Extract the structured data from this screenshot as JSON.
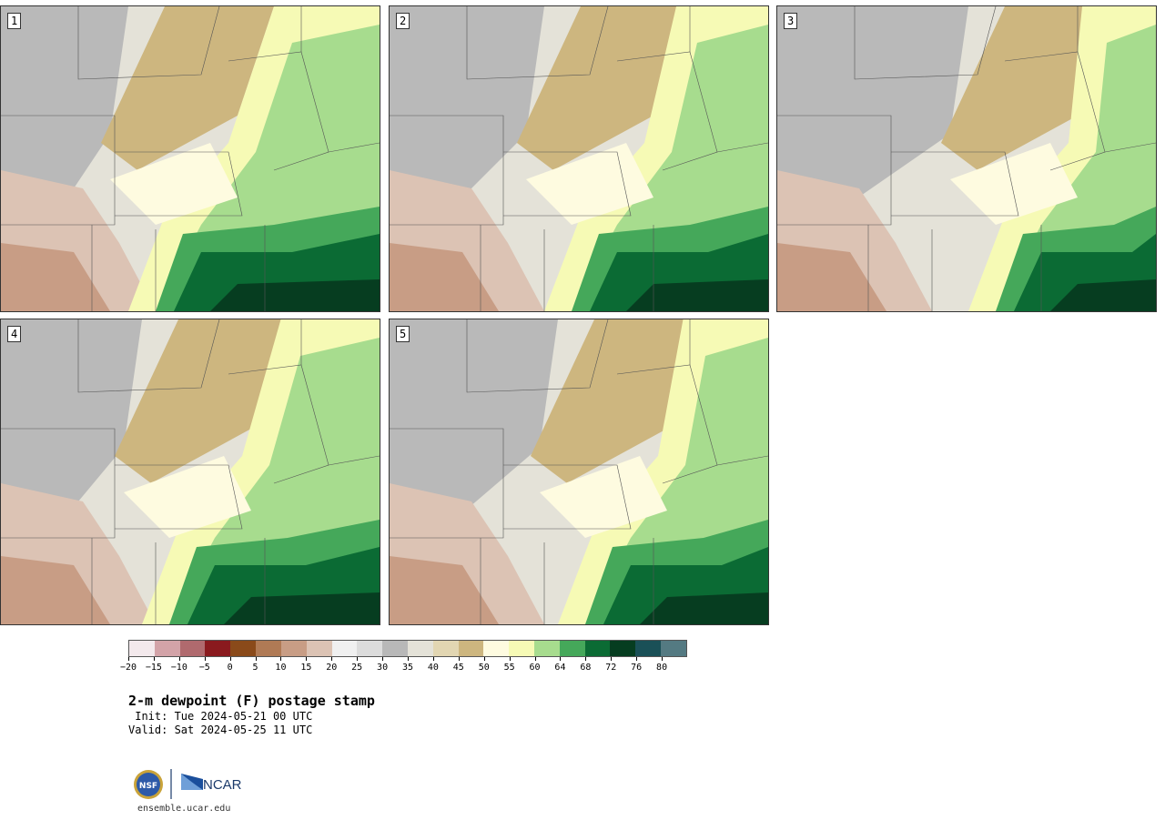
{
  "panels": [
    {
      "label": "1"
    },
    {
      "label": "2"
    },
    {
      "label": "3"
    },
    {
      "label": "4"
    },
    {
      "label": "5"
    }
  ],
  "colorbar": {
    "colors": [
      "#f3e9ec",
      "#d3a3a8",
      "#b06a6e",
      "#8a1a1e",
      "#8a4a1a",
      "#b07a55",
      "#c89d85",
      "#dcc3b4",
      "#f0f0f0",
      "#dcdcdc",
      "#b8b8b8",
      "#e4e2d8",
      "#e2d6b2",
      "#cdb67f",
      "#fefbe0",
      "#f6fab5",
      "#a7dc8e",
      "#45a85a",
      "#0b6b34",
      "#063d20",
      "#1a5057",
      "#547a82"
    ],
    "tick_labels": [
      "−20",
      "−15",
      "−10",
      "−5",
      "0",
      "5",
      "10",
      "15",
      "20",
      "25",
      "30",
      "35",
      "40",
      "45",
      "50",
      "55",
      "60",
      "64",
      "68",
      "72",
      "76",
      "80"
    ]
  },
  "title": "2-m dewpoint (F) postage stamp",
  "init": " Init: Tue 2024-05-21 00 UTC",
  "valid": "Valid: Sat 2024-05-25 11 UTC",
  "logo": {
    "left_text": "NSF",
    "right_text": "NCAR"
  },
  "url": "ensemble.ucar.edu"
}
